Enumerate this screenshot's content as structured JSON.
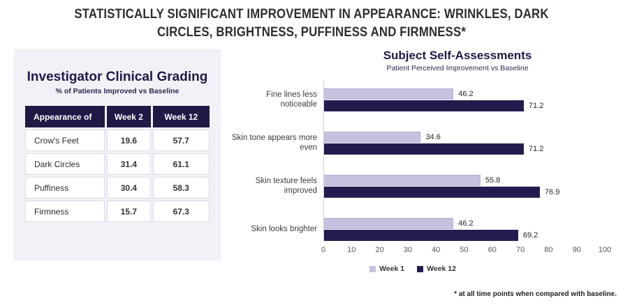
{
  "page": {
    "title": "STATISTICALLY SIGNIFICANT IMPROVEMENT IN APPEARANCE: WRINKLES, DARK CIRCLES, BRIGHTNESS, PUFFINESS AND FIRMNESS*",
    "footnote": "* at all time points when compared with baseline."
  },
  "colors": {
    "navy": "#221c4e",
    "lavender": "#c7c1e0",
    "panel_bg": "#f2f1f7",
    "header_bg": "#1e1945"
  },
  "clinical_table": {
    "title": "Investigator Clinical Grading",
    "subtitle": "% of Patients Improved vs Baseline",
    "columns": [
      "Appearance of",
      "Week 2",
      "Week 12"
    ],
    "rows": [
      {
        "label": "Crow's Feet",
        "week2": "19.6",
        "week12": "57.7"
      },
      {
        "label": "Dark Circles",
        "week2": "31.4",
        "week12": "61.1"
      },
      {
        "label": "Puffiness",
        "week2": "30.4",
        "week12": "58.3"
      },
      {
        "label": "Firmness",
        "week2": "15.7",
        "week12": "67.3"
      }
    ]
  },
  "chart_data": {
    "type": "bar",
    "orientation": "horizontal",
    "title": "Subject Self-Assessments",
    "subtitle": "Patient Perceived Improvement vs Baseline",
    "categories": [
      "Fine lines less noticeable",
      "Skin tone appears more even",
      "Skin texture feels improved",
      "Skin looks brighter"
    ],
    "series": [
      {
        "name": "Week 1",
        "color": "#c7c1e0",
        "values": [
          46.2,
          34.6,
          55.8,
          46.2
        ]
      },
      {
        "name": "Week 12",
        "color": "#221c4e",
        "values": [
          71.2,
          71.2,
          76.9,
          69.2
        ]
      }
    ],
    "xlim": [
      0,
      100
    ],
    "xticks": [
      0,
      10,
      20,
      30,
      40,
      50,
      60,
      70,
      80,
      90,
      100
    ],
    "grid": false,
    "legend_position": "bottom"
  }
}
